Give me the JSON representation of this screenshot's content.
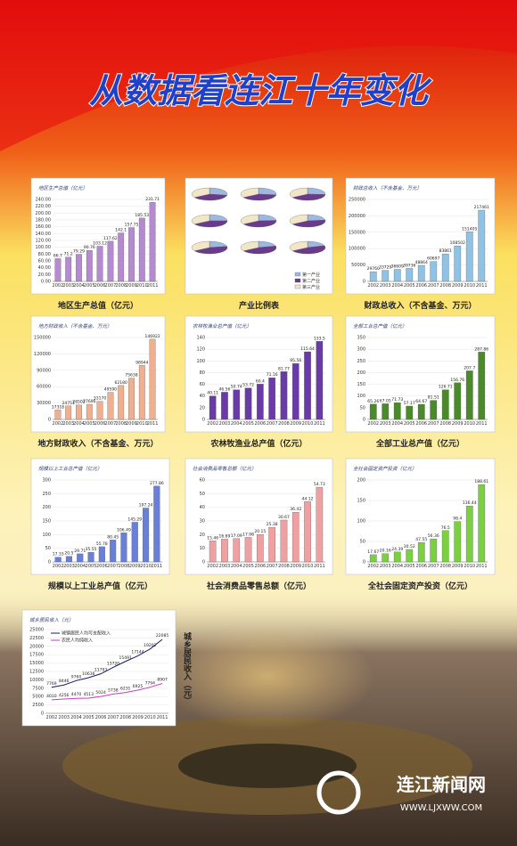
{
  "header": {
    "title": "从数据看连江十年变化"
  },
  "logo": {
    "name": "连江新闻网",
    "url": "WWW.LJXWW.COM"
  },
  "chart_data": [
    {
      "type": "bar",
      "title": "地区生产总值（亿元）",
      "caption": "地区生产总值（亿元）",
      "color": "#b58ad0",
      "categories": [
        "2002",
        "2003",
        "2004",
        "2005",
        "2006",
        "2007",
        "2008",
        "2009",
        "2010",
        "2011"
      ],
      "values": [
        66.7,
        71.2,
        79.29,
        90.76,
        103.12,
        117.62,
        142.1,
        157.75,
        185.53,
        231.71
      ],
      "ylim": [
        0,
        240
      ],
      "yticks": [
        {
          "value": 0,
          "label": "0.00"
        },
        {
          "value": 20,
          "label": "20.00"
        },
        {
          "value": 40,
          "label": "40.00"
        },
        {
          "value": 60,
          "label": "60.00"
        },
        {
          "value": 80,
          "label": "80.00"
        },
        {
          "value": 100,
          "label": "100.00"
        },
        {
          "value": 120,
          "label": "120.00"
        },
        {
          "value": 140,
          "label": "140.00"
        },
        {
          "value": 160,
          "label": "160.00"
        },
        {
          "value": 180,
          "label": "180.00"
        },
        {
          "value": 200,
          "label": "200.00"
        },
        {
          "value": 220,
          "label": "220.00"
        },
        {
          "value": 240,
          "label": "240.00"
        }
      ]
    },
    {
      "type": "pie",
      "caption": "产业比例表",
      "colors": [
        "#9fb8e0",
        "#6a3a8c",
        "#f2e6c8"
      ],
      "categories": [
        "第一产业",
        "第二产业",
        "第三产业"
      ],
      "pies": [
        [
          28,
          38,
          34
        ],
        [
          27,
          39,
          34
        ],
        [
          26,
          40,
          34
        ],
        [
          25,
          41,
          34
        ],
        [
          24,
          42,
          34
        ],
        [
          23,
          43,
          34
        ],
        [
          22,
          44,
          34
        ],
        [
          21,
          45,
          34
        ],
        [
          20,
          46,
          34
        ]
      ]
    },
    {
      "type": "bar",
      "title": "财政总收入（不含基金、万元）",
      "caption": "财政总收入（不含基金、万元）",
      "color": "#8ec3e6",
      "categories": [
        "2002",
        "2003",
        "2004",
        "2005",
        "2006",
        "2007",
        "2008",
        "2009",
        "2010",
        "2011"
      ],
      "values": [
        29760,
        33729,
        36609,
        39736,
        48864,
        60697,
        83861,
        108502,
        151405,
        217461
      ],
      "ylim": [
        0,
        250000
      ],
      "yticks": [
        0,
        50000,
        100000,
        150000,
        200000,
        250000
      ]
    },
    {
      "type": "bar",
      "title": "地方财政收入（不含基金、万元）",
      "caption": "地方财政收入（不含基金、万元）",
      "color": "#f0b090",
      "categories": [
        "2002",
        "2003",
        "2004",
        "2005",
        "2006",
        "2007",
        "2008",
        "2009",
        "2010",
        "2011"
      ],
      "values": [
        17318,
        24751,
        26502,
        27696,
        33170,
        49590,
        62180,
        75638,
        98944,
        146922
      ],
      "ylim": [
        0,
        150000
      ],
      "yticks": [
        0,
        30000,
        60000,
        90000,
        120000,
        150000
      ]
    },
    {
      "type": "bar",
      "title": "农林牧渔业总产值（亿元）",
      "caption": "农林牧渔业总产值（亿元）",
      "color": "#6a3aa8",
      "categories": [
        "2002",
        "2003",
        "2004",
        "2005",
        "2006",
        "2007",
        "2008",
        "2009",
        "2010",
        "2011"
      ],
      "values": [
        40.11,
        46.56,
        50.74,
        53.72,
        60.4,
        71.16,
        81.77,
        95.56,
        115.64,
        133.5
      ],
      "ylim": [
        0,
        140
      ],
      "yticks": [
        0,
        20,
        40,
        60,
        80,
        100,
        120,
        140
      ]
    },
    {
      "type": "bar",
      "title": "全部工业总产值（亿元）",
      "caption": "全部工业总产值（亿元）",
      "color": "#4a8a2a",
      "categories": [
        "2002",
        "2003",
        "2004",
        "2005",
        "2006",
        "2007",
        "2008",
        "2009",
        "2010",
        "2011"
      ],
      "values": [
        65.26,
        67.05,
        71.73,
        57.17,
        64.67,
        81.51,
        126.71,
        156.76,
        207.7,
        287.86
      ],
      "ylim": [
        0,
        350
      ],
      "yticks": [
        0,
        50,
        100,
        150,
        200,
        250,
        300,
        350
      ]
    },
    {
      "type": "bar",
      "title": "规模以上工业总产值（亿元）",
      "caption": "规模以上工业总产值（亿元）",
      "color": "#6a80d8",
      "categories": [
        "2002",
        "2003",
        "2004",
        "2005",
        "2006",
        "2007",
        "2008",
        "2009",
        "2010",
        "2011"
      ],
      "values": [
        17.33,
        20.5,
        29.71,
        35.55,
        55.78,
        80.45,
        106.49,
        145.29,
        197.24,
        277.86
      ],
      "ylim": [
        0,
        300
      ],
      "yticks": [
        0,
        50,
        100,
        150,
        200,
        250,
        300
      ]
    },
    {
      "type": "bar",
      "title": "社会消费品零售总额（亿元）",
      "caption": "社会消费品零售总额（亿元）",
      "color": "#f0a0a0",
      "categories": [
        "2002",
        "2003",
        "2004",
        "2005",
        "2006",
        "2007",
        "2008",
        "2009",
        "2010",
        "2011"
      ],
      "values": [
        15.46,
        16.69,
        17.09,
        17.98,
        20.15,
        25.38,
        30.67,
        36.42,
        44.12,
        54.73
      ],
      "ylim": [
        0,
        60
      ],
      "yticks": [
        0,
        10,
        20,
        30,
        40,
        50,
        60
      ]
    },
    {
      "type": "bar",
      "title": "全社会固定资产投资（亿元）",
      "caption": "全社会固定资产投资（亿元）",
      "color": "#7ad040",
      "categories": [
        "2002",
        "2003",
        "2004",
        "2005",
        "2006",
        "2007",
        "2008",
        "2009",
        "2010",
        "2011"
      ],
      "values": [
        17.67,
        20.16,
        24.39,
        30.52,
        47.55,
        56.36,
        76.5,
        98.4,
        136.44,
        188.61
      ],
      "ylim": [
        0,
        200
      ],
      "yticks": [
        0,
        50,
        100,
        150,
        200
      ]
    },
    {
      "type": "line",
      "title": "城乡居民收入（元）",
      "caption": "城乡居民收入（元）",
      "categories": [
        "2002",
        "2003",
        "2004",
        "2005",
        "2006",
        "2007",
        "2008",
        "2009",
        "2010",
        "2011"
      ],
      "series": [
        {
          "name": "城镇居民人均可支配收入",
          "color": "#1a1a60",
          "values": [
            7769,
            8446,
            9760,
            10636,
            11793,
            13720,
            15491,
            17144,
            19202,
            22085
          ]
        },
        {
          "name": "农民人均纯收入",
          "color": "#c040c0",
          "values": [
            4010,
            4256,
            4470,
            4513,
            5024,
            5738,
            6231,
            6925,
            7794,
            8907
          ]
        }
      ],
      "ylim": [
        0,
        25000
      ],
      "yticks": [
        0,
        2500,
        5000,
        7500,
        10000,
        12500,
        15000,
        17500,
        20000,
        22500,
        25000
      ]
    }
  ]
}
